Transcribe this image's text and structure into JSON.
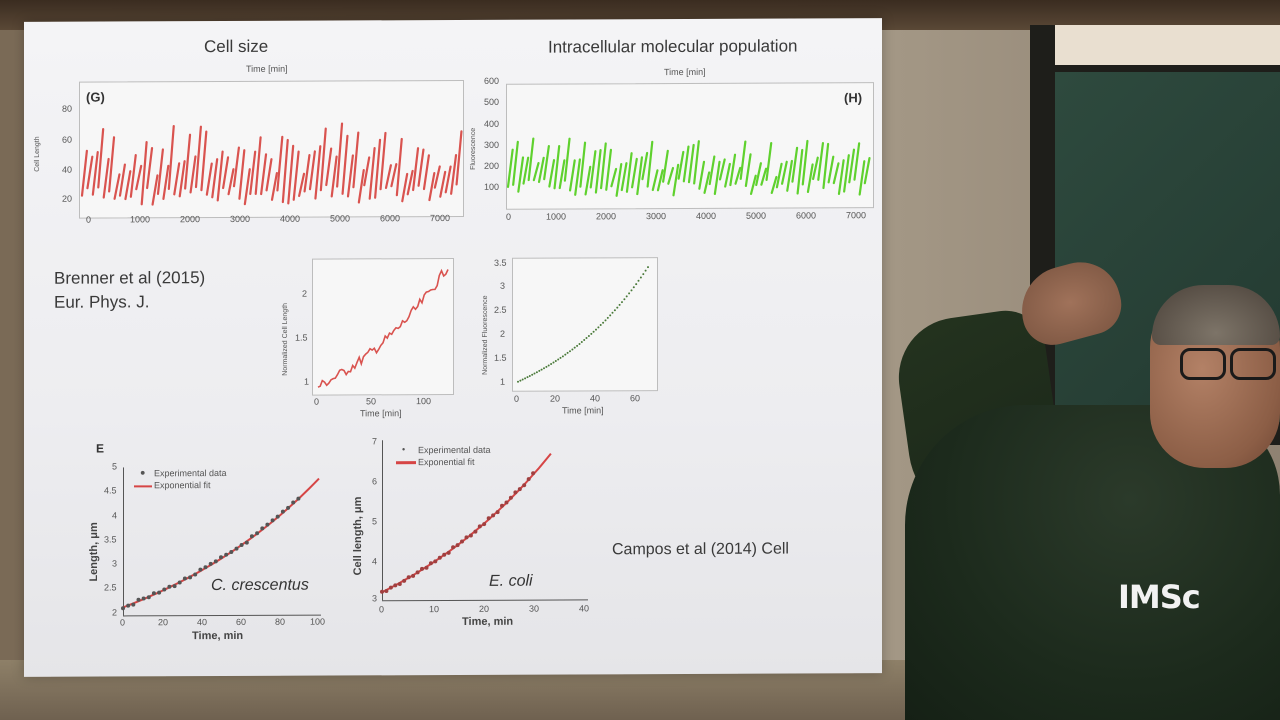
{
  "slide": {
    "top_left_title": "Cell size",
    "top_right_title": "Intracellular molecular population",
    "panel_g": {
      "label": "(G)",
      "top_axis": "Time [min]",
      "ylabel": "Cell Length",
      "yticks": [
        "80",
        "60",
        "40",
        "20"
      ],
      "xticks": [
        "0",
        "1000",
        "2000",
        "3000",
        "4000",
        "5000",
        "6000",
        "7000"
      ]
    },
    "panel_h": {
      "label": "(H)",
      "top_axis": "Time [min]",
      "ylabel": "Fluorescence",
      "yticks": [
        "600",
        "500",
        "400",
        "300",
        "200",
        "100"
      ],
      "xticks": [
        "0",
        "1000",
        "2000",
        "3000",
        "4000",
        "5000",
        "6000",
        "7000"
      ]
    },
    "reference_1": {
      "line1": "Brenner et al (2015)",
      "line2": "Eur. Phys. J."
    },
    "inset_length": {
      "ylabel": "Normalized Cell Length",
      "yticks": [
        "2",
        "1.5",
        "1"
      ],
      "xticks": [
        "0",
        "50",
        "100"
      ],
      "xlabel": "Time [min]"
    },
    "inset_fluor": {
      "ylabel": "Normalized Fluorescence",
      "yticks": [
        "3.5",
        "3",
        "2.5",
        "2",
        "1.5",
        "1"
      ],
      "xticks": [
        "0",
        "20",
        "40",
        "60"
      ],
      "xlabel": "Time [min]"
    },
    "panel_e": {
      "label": "E",
      "legend_data": "Experimental data",
      "legend_fit": "Exponential fit",
      "ylabel": "Length, μm",
      "yticks": [
        "5",
        "4.5",
        "4",
        "3.5",
        "3",
        "2.5",
        "2"
      ],
      "xticks": [
        "0",
        "20",
        "40",
        "60",
        "80",
        "100"
      ],
      "xlabel": "Time, min",
      "organism": "C. crescentus"
    },
    "panel_ecoli": {
      "legend_data": "Experimental data",
      "legend_fit": "Exponential fit",
      "ylabel": "Cell length, μm",
      "yticks": [
        "7",
        "6",
        "5",
        "4",
        "3"
      ],
      "xticks": [
        "0",
        "10",
        "20",
        "30",
        "40"
      ],
      "xlabel": "Time, min",
      "organism": "E. coli"
    },
    "reference_2": "Campos et al (2014) Cell"
  },
  "watermark": "IMSc",
  "colors": {
    "red_trace": "#d9534f",
    "green_trace": "#5fd12e",
    "fit_line": "#d64545",
    "dots": "#555555"
  }
}
